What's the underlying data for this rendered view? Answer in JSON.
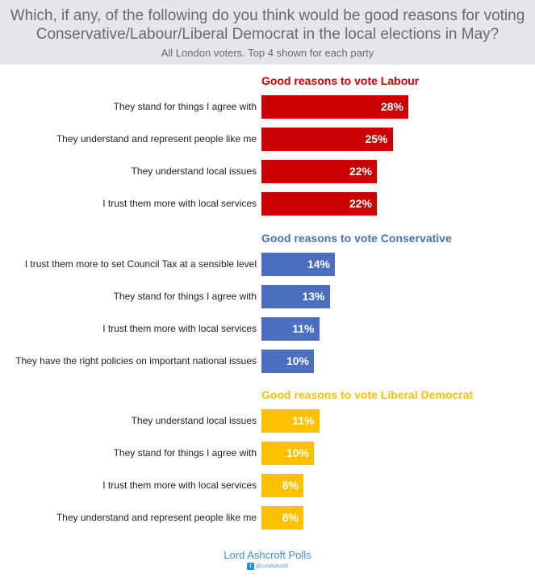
{
  "chart_data": {
    "type": "bar",
    "orientation": "horizontal",
    "title": "Which, if any, of the following do you think would be good reasons for voting Conservative/Labour/Liberal Democrat in the local elections in May?",
    "subtitle": "All London voters. Top 4 shown for each party",
    "unit": "%",
    "groups": [
      {
        "heading": "Good reasons to vote Labour",
        "color": "#cc0000",
        "categories": [
          "They stand for things I agree with",
          "They understand and represent people like me",
          "They understand local issues",
          "I trust them more with local services"
        ],
        "values": [
          28,
          25,
          22,
          22
        ]
      },
      {
        "heading": "Good reasons to vote Conservative",
        "color": "#4a6fbf",
        "categories": [
          "I trust them more to set Council Tax at a sensible level",
          "They stand for things I agree with",
          "I trust them more with local services",
          "They have the right policies on important national issues"
        ],
        "values": [
          14,
          13,
          11,
          10
        ]
      },
      {
        "heading": "Good reasons to vote Liberal Democrat",
        "color": "#ffc000",
        "categories": [
          "They understand local issues",
          "They stand for things I agree with",
          "I trust them more with local services",
          "They understand and represent people like me"
        ],
        "values": [
          11,
          10,
          8,
          8
        ]
      }
    ]
  },
  "footer": {
    "brand": "Lord Ashcroft Polls",
    "handle": "@LordAshcroft",
    "icon": "twitter-icon"
  }
}
